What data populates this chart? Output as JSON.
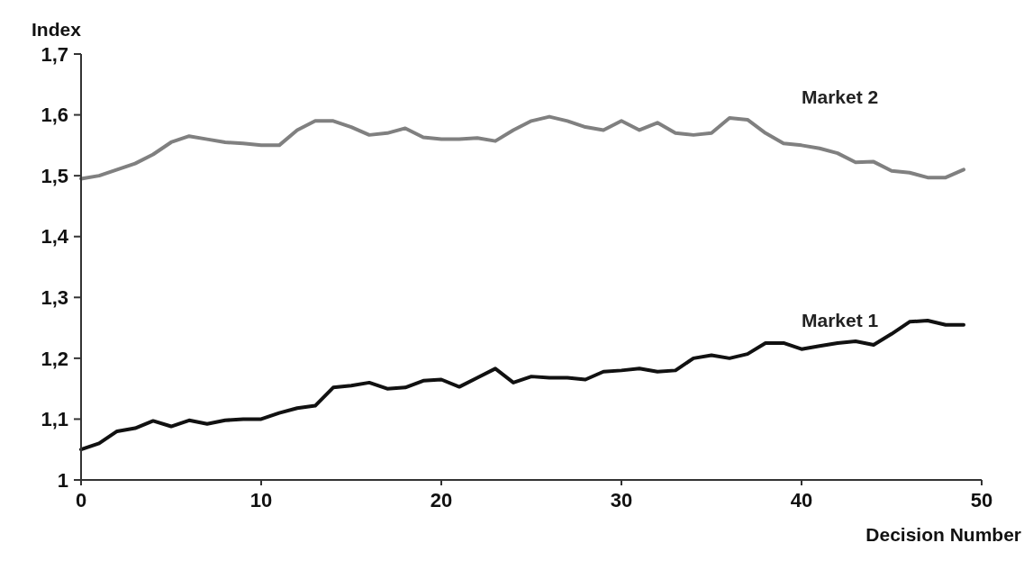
{
  "chart_data": {
    "type": "line",
    "xlabel": "Decision Number",
    "ylabel": "Index",
    "x": [
      0,
      1,
      2,
      3,
      4,
      5,
      6,
      7,
      8,
      9,
      10,
      11,
      12,
      13,
      14,
      15,
      16,
      17,
      18,
      19,
      20,
      21,
      22,
      23,
      24,
      25,
      26,
      27,
      28,
      29,
      30,
      31,
      32,
      33,
      34,
      35,
      36,
      37,
      38,
      39,
      40,
      41,
      42,
      43,
      44,
      45,
      46,
      47,
      48,
      49
    ],
    "series": [
      {
        "name": "Market 2",
        "color": "#808080",
        "values": [
          1.495,
          1.5,
          1.51,
          1.52,
          1.535,
          1.555,
          1.565,
          1.56,
          1.555,
          1.553,
          1.55,
          1.55,
          1.575,
          1.59,
          1.59,
          1.58,
          1.567,
          1.57,
          1.578,
          1.563,
          1.56,
          1.56,
          1.562,
          1.557,
          1.575,
          1.59,
          1.597,
          1.59,
          1.58,
          1.575,
          1.59,
          1.575,
          1.587,
          1.57,
          1.567,
          1.57,
          1.595,
          1.592,
          1.57,
          1.553,
          1.55,
          1.545,
          1.537,
          1.522,
          1.523,
          1.508,
          1.505,
          1.497,
          1.497,
          1.51
        ]
      },
      {
        "name": "Market 1",
        "color": "#111111",
        "values": [
          1.05,
          1.06,
          1.08,
          1.085,
          1.097,
          1.088,
          1.098,
          1.092,
          1.098,
          1.1,
          1.1,
          1.11,
          1.118,
          1.122,
          1.152,
          1.155,
          1.16,
          1.15,
          1.152,
          1.163,
          1.165,
          1.153,
          1.168,
          1.183,
          1.16,
          1.17,
          1.168,
          1.168,
          1.165,
          1.178,
          1.18,
          1.183,
          1.178,
          1.18,
          1.2,
          1.205,
          1.2,
          1.207,
          1.225,
          1.225,
          1.215,
          1.22,
          1.225,
          1.228,
          1.222,
          1.24,
          1.26,
          1.262,
          1.255,
          1.255
        ]
      }
    ],
    "xlim": [
      0,
      50
    ],
    "xticks": [
      0,
      10,
      20,
      30,
      40,
      50
    ],
    "ylim": [
      1,
      1.7
    ],
    "yticks": [
      1,
      {
        "value": 1.1,
        "label": "1,1"
      },
      {
        "value": 1.2,
        "label": "1,2"
      },
      {
        "value": 1.3,
        "label": "1,3"
      },
      {
        "value": 1.4,
        "label": "1,4"
      },
      {
        "value": 1.5,
        "label": "1,5"
      },
      {
        "value": 1.6,
        "label": "1,6"
      },
      {
        "value": 1.7,
        "label": "1,7"
      }
    ],
    "grid": false,
    "marker": "none",
    "line_style": "solid"
  }
}
